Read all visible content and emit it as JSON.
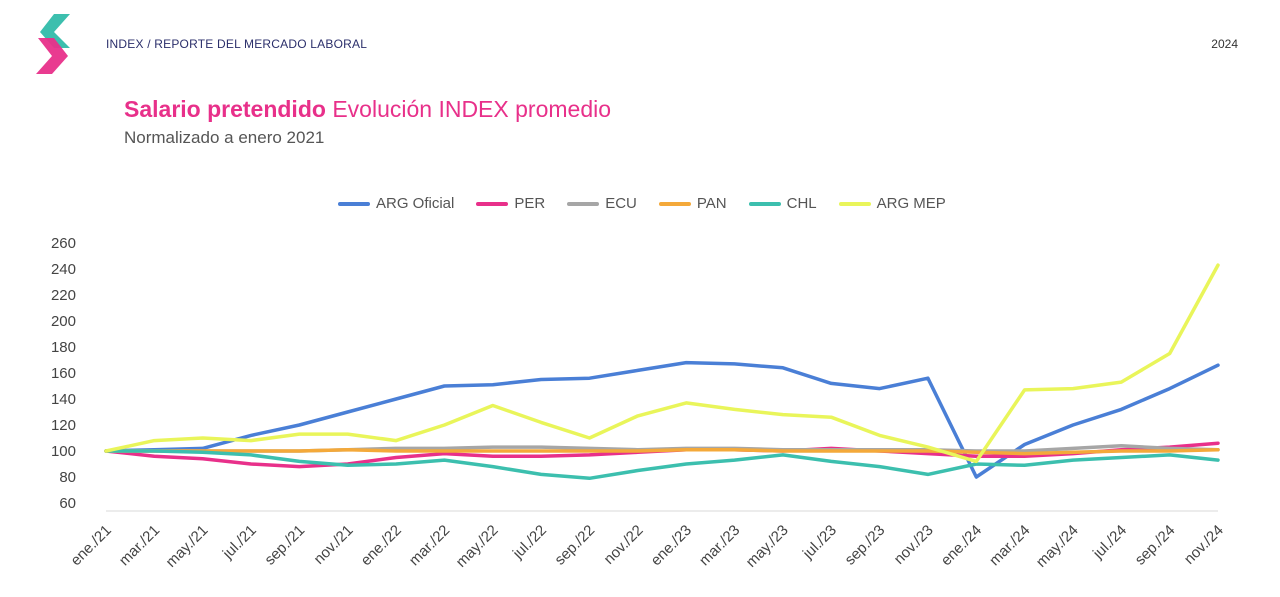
{
  "header": {
    "breadcrumb": "INDEX / REPORTE DEL MERCADO LABORAL",
    "year": "2024"
  },
  "colors": {
    "logo_teal": "#3cbfae",
    "logo_pink": "#e8308a",
    "title_pink": "#e8308a"
  },
  "title_bold": "Salario pretendido",
  "title_rest": " Evolución INDEX promedio",
  "subtitle": "Normalizado a enero 2021",
  "chart_data": {
    "type": "line",
    "title": "",
    "xlabel": "",
    "ylabel": "",
    "ylim": [
      60,
      260
    ],
    "yticks": [
      60,
      80,
      100,
      120,
      140,
      160,
      180,
      200,
      220,
      240,
      260
    ],
    "grid": false,
    "legend_position": "top",
    "categories": [
      "ene./21",
      "mar./21",
      "may./21",
      "jul./21",
      "sep./21",
      "nov./21",
      "ene./22",
      "mar./22",
      "may./22",
      "jul./22",
      "sep./22",
      "nov./22",
      "ene./23",
      "mar./23",
      "may./23",
      "jul./23",
      "sep./23",
      "nov./23",
      "ene./24",
      "mar./24",
      "may./24",
      "jul./24",
      "sep./24",
      "nov./24"
    ],
    "series": [
      {
        "name": "ARG Oficial",
        "color": "#4a7fd6",
        "values": [
          100,
          101,
          102,
          112,
          120,
          130,
          140,
          150,
          151,
          155,
          156,
          162,
          168,
          167,
          164,
          152,
          148,
          156,
          80,
          105,
          120,
          132,
          148,
          166
        ]
      },
      {
        "name": "PER",
        "color": "#e8308a",
        "values": [
          100,
          96,
          94,
          90,
          88,
          90,
          95,
          98,
          96,
          96,
          97,
          99,
          101,
          101,
          100,
          102,
          100,
          98,
          96,
          96,
          98,
          101,
          103,
          106
        ]
      },
      {
        "name": "ECU",
        "color": "#a6a6a6",
        "values": [
          100,
          100,
          100,
          100,
          100,
          101,
          102,
          102,
          103,
          103,
          102,
          101,
          102,
          102,
          101,
          101,
          101,
          101,
          100,
          100,
          102,
          104,
          102,
          101
        ]
      },
      {
        "name": "PAN",
        "color": "#f4a93a",
        "values": [
          100,
          100,
          100,
          100,
          100,
          101,
          100,
          100,
          100,
          100,
          100,
          100,
          101,
          101,
          100,
          100,
          100,
          100,
          99,
          98,
          99,
          100,
          100,
          101
        ]
      },
      {
        "name": "CHL",
        "color": "#3cbfae",
        "values": [
          100,
          100,
          99,
          97,
          92,
          89,
          90,
          93,
          88,
          82,
          79,
          85,
          90,
          93,
          97,
          92,
          88,
          82,
          90,
          89,
          93,
          95,
          97,
          93
        ]
      },
      {
        "name": "ARG MEP",
        "color": "#e9f55a",
        "values": [
          100,
          108,
          110,
          108,
          113,
          113,
          108,
          120,
          135,
          122,
          110,
          127,
          137,
          132,
          128,
          126,
          112,
          103,
          92,
          147,
          148,
          153,
          175,
          243
        ]
      }
    ]
  }
}
